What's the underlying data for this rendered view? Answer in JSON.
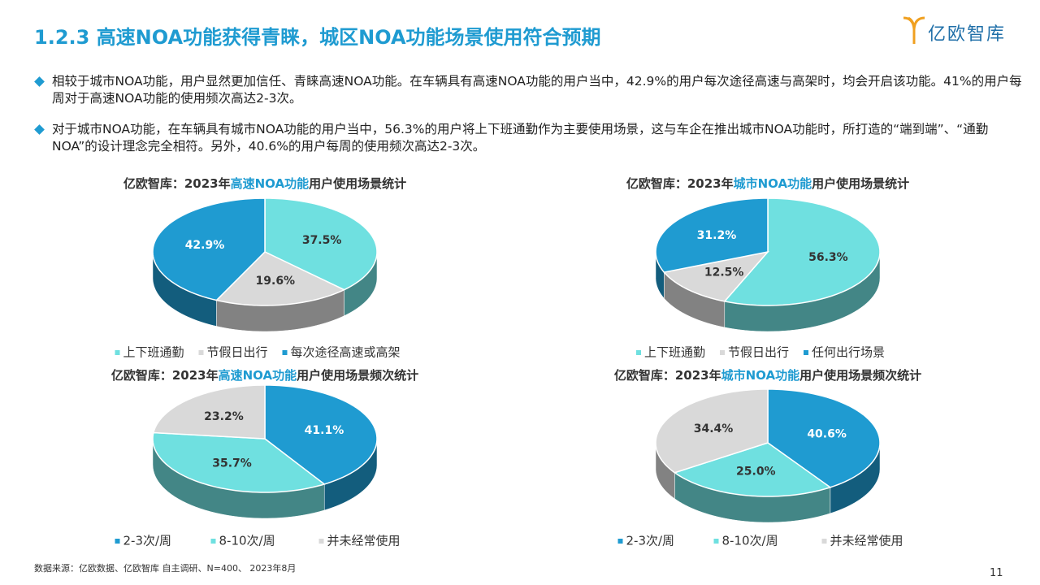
{
  "header": {
    "title": "1.2.3 高速NOA功能获得青睐，城区NOA功能场景使用符合预期",
    "logo": "亿欧智库"
  },
  "bullets": [
    "相较于城市NOA功能，用户显然更加信任、青睐高速NOA功能。在车辆具有高速NOA功能的用户当中，42.9%的用户每次途径高速与高架时，均会开启该功能。41%的用户每周对于高速NOA功能的使用频次高达2-3次。",
    "对于城市NOA功能，在车辆具有城市NOA功能的用户当中，56.3%的用户将上下班通勤作为主要使用场景，这与车企在推出城市NOA功能时，所打造的“端到端”、“通勤NOA”的设计理念完全相符。另外，40.6%的用户每周的使用频次高达2-3次。"
  ],
  "chart_data": [
    {
      "type": "pie",
      "title_parts": [
        "亿欧智库：2023年",
        "高速NOA功能",
        "用户使用场景统计"
      ],
      "categories": [
        "上下班通勤",
        "节假日出行",
        "每次途径高速或高架"
      ],
      "colors": [
        "#6fe0e0",
        "#d9d9d9",
        "#1f9bd1"
      ],
      "values": [
        37.5,
        19.6,
        42.9
      ],
      "value_labels": [
        "37.5%",
        "19.6%",
        "42.9%"
      ]
    },
    {
      "type": "pie",
      "title_parts": [
        "亿欧智库：2023年",
        "城市NOA功能",
        "用户使用场景统计"
      ],
      "categories": [
        "上下班通勤",
        "节假日出行",
        "任何出行场景"
      ],
      "colors": [
        "#6fe0e0",
        "#d9d9d9",
        "#1f9bd1"
      ],
      "values": [
        56.3,
        12.5,
        31.2
      ],
      "value_labels": [
        "56.3%",
        "12.5%",
        "31.2%"
      ]
    },
    {
      "type": "pie",
      "title_parts": [
        "亿欧智库：2023年",
        "高速NOA功能",
        "用户使用场景频次统计"
      ],
      "categories": [
        "2-3次/周",
        "8-10次/周",
        "并未经常使用"
      ],
      "colors": [
        "#1f9bd1",
        "#6fe0e0",
        "#d9d9d9"
      ],
      "values": [
        41.1,
        35.7,
        23.2
      ],
      "value_labels": [
        "41.1%",
        "35.7%",
        "23.2%"
      ]
    },
    {
      "type": "pie",
      "title_parts": [
        "亿欧智库：2023年",
        "城市NOA功能",
        "用户使用场景频次统计"
      ],
      "categories": [
        "2-3次/周",
        "8-10次/周",
        "并未经常使用"
      ],
      "colors": [
        "#1f9bd1",
        "#6fe0e0",
        "#d9d9d9"
      ],
      "values": [
        40.6,
        25.0,
        34.4
      ],
      "value_labels": [
        "40.6%",
        "25.0%",
        "34.4%"
      ]
    }
  ],
  "source": "数据来源：亿欧数据、亿欧智库 自主调研、N=400、 2023年8月",
  "page_number": 11
}
